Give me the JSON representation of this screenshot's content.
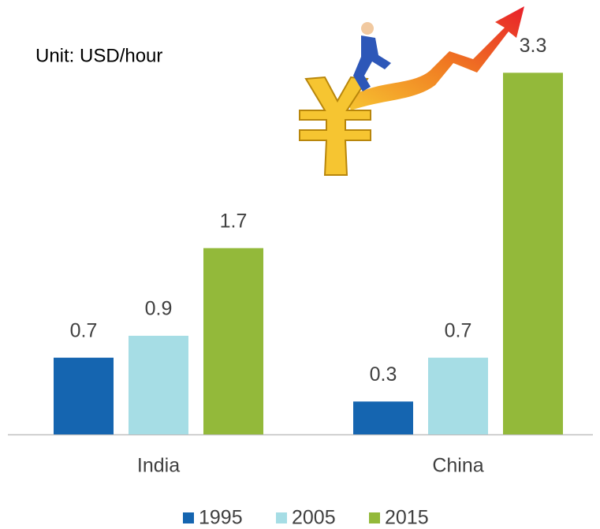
{
  "chart_data": {
    "type": "bar",
    "annotation": "Unit: USD/hour",
    "categories": [
      "India",
      "China"
    ],
    "series": [
      {
        "name": "1995",
        "color": "#1565b0",
        "values": [
          0.7,
          0.3
        ]
      },
      {
        "name": "2005",
        "color": "#a6dde5",
        "values": [
          0.9,
          0.7
        ]
      },
      {
        "name": "2015",
        "color": "#93b93a",
        "values": [
          1.7,
          3.3
        ]
      }
    ],
    "legend": "bottom"
  }
}
